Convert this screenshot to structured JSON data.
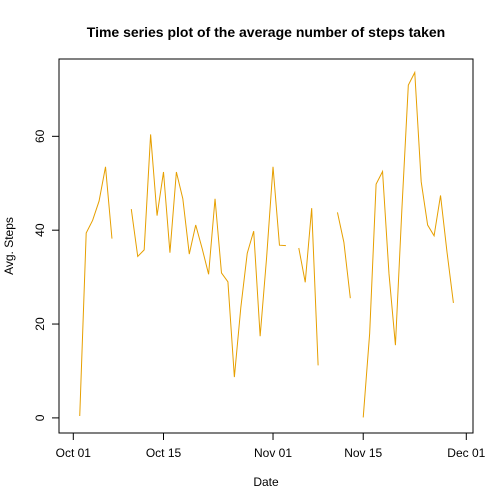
{
  "chart_data": {
    "type": "line",
    "title": "Time series plot of the average number of steps taken",
    "xlabel": "Date",
    "ylabel": "Avg. Steps",
    "xlim": [
      "2012-10-01",
      "2012-12-01"
    ],
    "ylim": [
      0,
      75
    ],
    "grid": false,
    "legend": "none",
    "x_ticks": [
      {
        "date": "2012-10-01",
        "label": "Oct 01"
      },
      {
        "date": "2012-10-15",
        "label": "Oct 15"
      },
      {
        "date": "2012-11-01",
        "label": "Nov 01"
      },
      {
        "date": "2012-11-15",
        "label": "Nov 15"
      },
      {
        "date": "2012-12-01",
        "label": "Dec 01"
      }
    ],
    "y_ticks": [
      0,
      20,
      40,
      60
    ],
    "line_color": "#E69F00",
    "series": [
      {
        "x": [
          "2012-10-02",
          "2012-10-03",
          "2012-10-04",
          "2012-10-05",
          "2012-10-06",
          "2012-10-07",
          "2012-10-08",
          "2012-10-09",
          "2012-10-10",
          "2012-10-11",
          "2012-10-12",
          "2012-10-13",
          "2012-10-14",
          "2012-10-15",
          "2012-10-16",
          "2012-10-17",
          "2012-10-18",
          "2012-10-19",
          "2012-10-20",
          "2012-10-21",
          "2012-10-22",
          "2012-10-23",
          "2012-10-24",
          "2012-10-25",
          "2012-10-26",
          "2012-10-27",
          "2012-10-28",
          "2012-10-29",
          "2012-10-30",
          "2012-10-31",
          "2012-11-01",
          "2012-11-02",
          "2012-11-03",
          "2012-11-04",
          "2012-11-05",
          "2012-11-06",
          "2012-11-07",
          "2012-11-08",
          "2012-11-09",
          "2012-11-10",
          "2012-11-11",
          "2012-11-12",
          "2012-11-13",
          "2012-11-14",
          "2012-11-15",
          "2012-11-16",
          "2012-11-17",
          "2012-11-18",
          "2012-11-19",
          "2012-11-20",
          "2012-11-21",
          "2012-11-22",
          "2012-11-23",
          "2012-11-24",
          "2012-11-25",
          "2012-11-26",
          "2012-11-27",
          "2012-11-28",
          "2012-11-29",
          "2012-11-30"
        ],
        "y": [
          0.4,
          39.4,
          42.1,
          46.2,
          53.5,
          38.2,
          null,
          null,
          44.5,
          34.4,
          35.8,
          60.4,
          43.1,
          52.4,
          35.2,
          52.4,
          46.7,
          34.9,
          41.1,
          36.1,
          30.6,
          46.7,
          30.9,
          29.0,
          8.7,
          23.5,
          35.1,
          39.8,
          17.4,
          34.1,
          53.5,
          36.8,
          36.7,
          null,
          36.2,
          28.9,
          44.7,
          11.2,
          null,
          null,
          43.8,
          37.4,
          25.5,
          null,
          0.1,
          18.0,
          49.8,
          52.5,
          30.7,
          15.5,
          44.4,
          70.9,
          73.6,
          50.3,
          41.1,
          38.8,
          47.4,
          35.4,
          24.5,
          null
        ]
      }
    ]
  }
}
